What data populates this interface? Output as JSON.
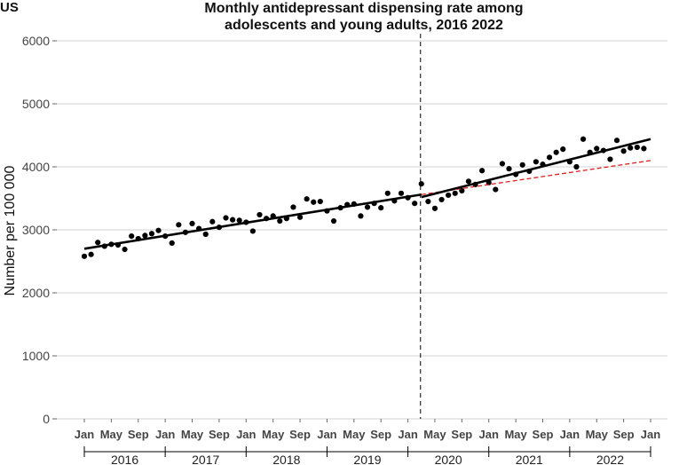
{
  "header": {
    "region": "US",
    "title_line1": "Monthly antidepressant dispensing rate among",
    "title_line2": "adolescents and young adults, 2016   2022"
  },
  "chart_data": {
    "type": "scatter",
    "title": "Monthly antidepressant dispensing rate among adolescents and young adults, 2016   2022",
    "ylabel": "Number per 100 000",
    "xlabel": "",
    "ylim": [
      0,
      6000
    ],
    "yticks": [
      0,
      1000,
      2000,
      3000,
      4000,
      5000,
      6000
    ],
    "x_tick_labels": [
      "Jan",
      "May",
      "Sep",
      "Jan",
      "May",
      "Sep",
      "Jan",
      "May",
      "Sep",
      "Jan",
      "May",
      "Sep",
      "Jan",
      "May",
      "Sep",
      "Jan",
      "May",
      "Sep",
      "Jan",
      "May",
      "Sep",
      "Jan"
    ],
    "year_labels": [
      "2016",
      "2017",
      "2018",
      "2019",
      "2020",
      "2021",
      "2022"
    ],
    "grid": "horizontal",
    "vline_month_index": 50,
    "monthly_values": [
      2580,
      2610,
      2800,
      2740,
      2770,
      2760,
      2690,
      2900,
      2860,
      2910,
      2940,
      2990,
      2900,
      2790,
      3080,
      2960,
      3100,
      3020,
      2930,
      3130,
      3040,
      3190,
      3160,
      3150,
      3120,
      2980,
      3240,
      3180,
      3220,
      3140,
      3180,
      3360,
      3200,
      3490,
      3440,
      3450,
      3300,
      3140,
      3350,
      3400,
      3410,
      3220,
      3360,
      3420,
      3350,
      3580,
      3460,
      3580,
      3510,
      3420,
      3730,
      3450,
      3340,
      3480,
      3550,
      3580,
      3620,
      3770,
      3720,
      3940,
      3750,
      3640,
      4050,
      3970,
      3880,
      4030,
      3930,
      4080,
      4040,
      4150,
      4230,
      4280,
      4080,
      4000,
      4440,
      4230,
      4290,
      4260,
      4120,
      4420,
      4250,
      4300,
      4310,
      4290
    ],
    "trend_pre": {
      "start_month_index": 0,
      "start_value": 2700,
      "end_month_index": 50,
      "end_value": 3560
    },
    "trend_post": {
      "start_month_index": 50,
      "start_value": 3520,
      "end_month_index": 84,
      "end_value": 4440
    },
    "counterfactual": {
      "start_month_index": 50,
      "start_value": 3560,
      "end_month_index": 84,
      "end_value": 4100,
      "style": "dashed",
      "color": "#e01b1b"
    },
    "colors": {
      "points": "#000000",
      "trend": "#000000",
      "counterfactual": "#e01b1b",
      "grid": "#d3d3d3"
    }
  }
}
